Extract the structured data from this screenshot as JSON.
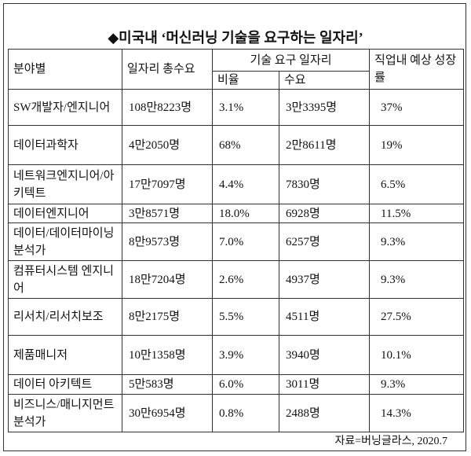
{
  "title": "◆미국내 ‘머신러닝 기술을 요구하는 일자리’",
  "columns": {
    "field": "분야별",
    "total": "일자리 총수요",
    "skill": "기술 요구 일자리",
    "ratio": "비율",
    "demand": "수요",
    "growth": "직업내 예상 성장률"
  },
  "rows": [
    [
      "SW개발자/엔지니어",
      "108만8223명",
      "3.1%",
      "3만3395명",
      "37%"
    ],
    [
      "데이터과학자",
      "4만2050명",
      "68%",
      "2만8611명",
      "19%"
    ],
    [
      "네트워크엔지니어/아키텍트",
      "17만7097명",
      "4.4%",
      "7830명",
      "6.5%"
    ],
    [
      "데이터엔지니어",
      "3만8571명",
      "18.0%",
      "6928명",
      "11.5%"
    ],
    [
      "데이터/데이터마이닝 분석가",
      "8만9573명",
      "7.0%",
      "6257명",
      "9.3%"
    ],
    [
      "컴퓨터시스템 엔지니어",
      "18만7204명",
      "2.6%",
      "4937명",
      "9.3%"
    ],
    [
      "리서치/리서치보조",
      "8만2175명",
      "5.5%",
      "4511명",
      "27.5%"
    ],
    [
      "제품매니저",
      "10만1358명",
      "3.9%",
      "3940명",
      "10.1%"
    ],
    [
      "데이터 아키텍트",
      "5만583명",
      "6.0%",
      "3011명",
      "9.3%"
    ],
    [
      "비즈니스/매니지먼트 분석가",
      "30만6954명",
      "0.8%",
      "2488명",
      "14.3%"
    ]
  ],
  "source": "자료=버닝글라스, 2020.7"
}
